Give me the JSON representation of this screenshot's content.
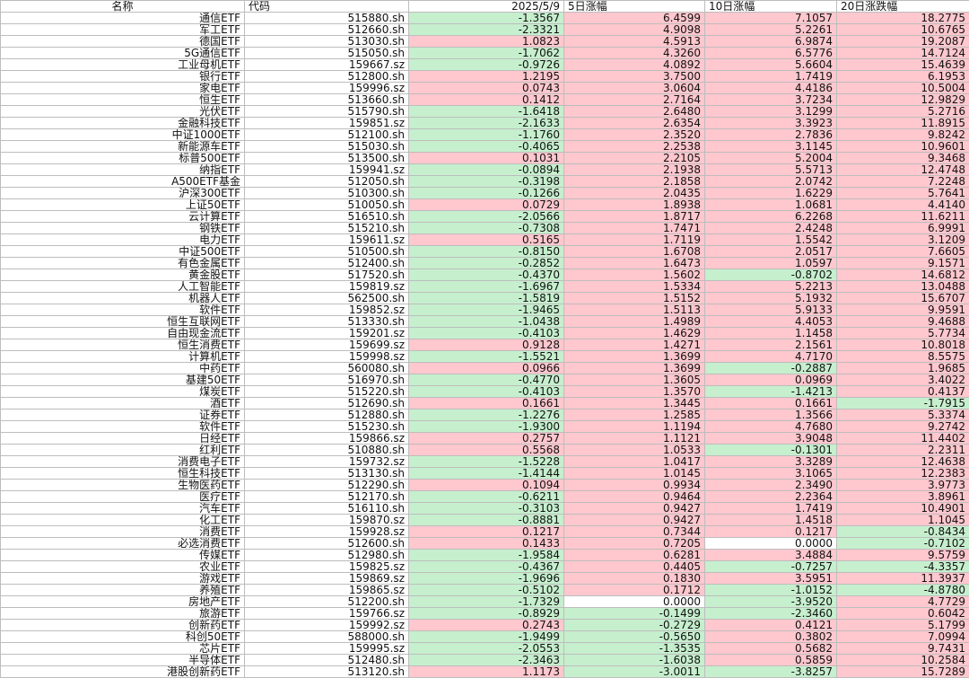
{
  "table": {
    "columns": [
      "名称",
      "代码",
      "2025/5/9",
      "5日涨幅",
      "10日涨幅",
      "20日涨跌幅"
    ],
    "rows": [
      [
        "通信ETF",
        "515880.sh",
        "-1.3567",
        "6.4599",
        "7.1057",
        "18.2775"
      ],
      [
        "军工ETF",
        "512660.sh",
        "-2.3321",
        "4.9098",
        "5.2261",
        "10.6765"
      ],
      [
        "德国ETF",
        "513030.sh",
        "1.0823",
        "4.5913",
        "6.9874",
        "19.2087"
      ],
      [
        "5G通信ETF",
        "515050.sh",
        "-1.7062",
        "4.3260",
        "6.5776",
        "14.7124"
      ],
      [
        "工业母机ETF",
        "159667.sz",
        "-0.9726",
        "4.0892",
        "5.6604",
        "15.4639"
      ],
      [
        "银行ETF",
        "512800.sh",
        "1.2195",
        "3.7500",
        "1.7419",
        "6.1953"
      ],
      [
        "家电ETF",
        "159996.sz",
        "0.0743",
        "3.0604",
        "4.4186",
        "10.5004"
      ],
      [
        "恒生ETF",
        "513660.sh",
        "0.1412",
        "2.7164",
        "3.7234",
        "12.9829"
      ],
      [
        "光伏ETF",
        "515790.sh",
        "-1.6418",
        "2.6480",
        "3.1299",
        "5.2716"
      ],
      [
        "金融科技ETF",
        "159851.sz",
        "-2.1633",
        "2.6354",
        "3.3923",
        "11.8915"
      ],
      [
        "中证1000ETF",
        "512100.sh",
        "-1.1760",
        "2.3520",
        "2.7836",
        "9.8242"
      ],
      [
        "新能源车ETF",
        "515030.sh",
        "-0.4065",
        "2.2538",
        "3.1145",
        "10.9601"
      ],
      [
        "标普500ETF",
        "513500.sh",
        "0.1031",
        "2.2105",
        "5.2004",
        "9.3468"
      ],
      [
        "纳指ETF",
        "159941.sz",
        "-0.0894",
        "2.1938",
        "5.5713",
        "12.4748"
      ],
      [
        "A500ETF基金",
        "512050.sh",
        "-0.3198",
        "2.1858",
        "2.0742",
        "7.2248"
      ],
      [
        "沪深300ETF",
        "510300.sh",
        "-0.1266",
        "2.0435",
        "1.6229",
        "5.7641"
      ],
      [
        "上证50ETF",
        "510050.sh",
        "0.0729",
        "1.8938",
        "1.0681",
        "4.4140"
      ],
      [
        "云计算ETF",
        "516510.sh",
        "-2.0566",
        "1.8717",
        "6.2268",
        "11.6211"
      ],
      [
        "钢铁ETF",
        "515210.sh",
        "-0.7308",
        "1.7471",
        "2.4248",
        "6.9991"
      ],
      [
        "电力ETF",
        "159611.sz",
        "0.5165",
        "1.7119",
        "1.5542",
        "3.1209"
      ],
      [
        "中证500ETF",
        "510500.sh",
        "-0.8150",
        "1.6708",
        "2.0517",
        "7.6605"
      ],
      [
        "有色金属ETF",
        "512400.sh",
        "-0.2852",
        "1.6473",
        "1.0597",
        "9.1571"
      ],
      [
        "黄金股ETF",
        "517520.sh",
        "-0.4370",
        "1.5602",
        "-0.8702",
        "14.6812"
      ],
      [
        "人工智能ETF",
        "159819.sz",
        "-1.6967",
        "1.5334",
        "5.2213",
        "13.0488"
      ],
      [
        "机器人ETF",
        "562500.sh",
        "-1.5819",
        "1.5152",
        "5.1932",
        "15.6707"
      ],
      [
        "软件ETF",
        "159852.sz",
        "-1.9465",
        "1.5113",
        "5.9133",
        "9.9591"
      ],
      [
        "恒生互联网ETF",
        "513330.sh",
        "-1.0438",
        "1.4989",
        "4.4053",
        "9.4688"
      ],
      [
        "自由现金流ETF",
        "159201.sz",
        "-0.4103",
        "1.4629",
        "1.1458",
        "5.7734"
      ],
      [
        "恒生消费ETF",
        "159699.sz",
        "0.9128",
        "1.4271",
        "2.1561",
        "10.8018"
      ],
      [
        "计算机ETF",
        "159998.sz",
        "-1.5521",
        "1.3699",
        "4.7170",
        "8.5575"
      ],
      [
        "中药ETF",
        "560080.sh",
        "0.0966",
        "1.3699",
        "-0.2887",
        "1.9685"
      ],
      [
        "基建50ETF",
        "516970.sh",
        "-0.4770",
        "1.3605",
        "0.0969",
        "3.4022"
      ],
      [
        "煤炭ETF",
        "515220.sh",
        "-0.4103",
        "1.3570",
        "-1.4213",
        "0.4137"
      ],
      [
        "酒ETF",
        "512690.sh",
        "0.1661",
        "1.3445",
        "0.1661",
        "-1.7915"
      ],
      [
        "证券ETF",
        "512880.sh",
        "-1.2276",
        "1.2585",
        "1.3566",
        "5.3374"
      ],
      [
        "软件ETF",
        "515230.sh",
        "-1.9300",
        "1.1194",
        "4.7680",
        "9.2742"
      ],
      [
        "日经ETF",
        "159866.sz",
        "0.2757",
        "1.1121",
        "3.9048",
        "11.4402"
      ],
      [
        "红利ETF",
        "510880.sh",
        "0.5568",
        "1.0533",
        "-0.1301",
        "2.2311"
      ],
      [
        "消费电子ETF",
        "159732.sz",
        "-1.5228",
        "1.0417",
        "3.3289",
        "12.4638"
      ],
      [
        "恒生科技ETF",
        "513130.sh",
        "-1.4144",
        "1.0145",
        "3.1065",
        "12.2383"
      ],
      [
        "生物医药ETF",
        "512290.sh",
        "0.1094",
        "0.9934",
        "2.3490",
        "3.9773"
      ],
      [
        "医疗ETF",
        "512170.sh",
        "-0.6211",
        "0.9464",
        "2.2364",
        "3.8961"
      ],
      [
        "汽车ETF",
        "516110.sh",
        "-0.3103",
        "0.9427",
        "1.7419",
        "10.4901"
      ],
      [
        "化工ETF",
        "159870.sz",
        "-0.8881",
        "0.9427",
        "1.4518",
        "1.1045"
      ],
      [
        "消费ETF",
        "159928.sz",
        "0.1217",
        "0.7344",
        "0.1217",
        "-0.8434"
      ],
      [
        "必选消费ETF",
        "512600.sh",
        "0.1433",
        "0.7205",
        "0.0000",
        "-0.7102"
      ],
      [
        "传媒ETF",
        "512980.sh",
        "-1.9584",
        "0.6281",
        "3.4884",
        "9.5759"
      ],
      [
        "农业ETF",
        "159825.sz",
        "-0.4367",
        "0.4405",
        "-0.7257",
        "-4.3357"
      ],
      [
        "游戏ETF",
        "159869.sz",
        "-1.9696",
        "0.1830",
        "3.5951",
        "11.3937"
      ],
      [
        "养殖ETF",
        "159865.sz",
        "-0.5102",
        "0.1712",
        "-1.0152",
        "-4.8780"
      ],
      [
        "房地产ETF",
        "512200.sh",
        "-1.7329",
        "0.0000",
        "-3.9520",
        "4.7729"
      ],
      [
        "旅游ETF",
        "159766.sz",
        "-0.8929",
        "-0.1499",
        "-2.3460",
        "0.6042"
      ],
      [
        "创新药ETF",
        "159992.sz",
        "0.2743",
        "-0.2729",
        "0.4121",
        "5.1799"
      ],
      [
        "科创50ETF",
        "588000.sh",
        "-1.9499",
        "-0.5650",
        "0.3802",
        "7.0994"
      ],
      [
        "芯片ETF",
        "159995.sz",
        "-2.0553",
        "-1.3535",
        "0.5682",
        "9.7431"
      ],
      [
        "半导体ETF",
        "512480.sh",
        "-2.3463",
        "-1.6038",
        "0.5859",
        "10.2584"
      ],
      [
        "港股创新药ETF",
        "513120.sh",
        "1.1173",
        "-3.0011",
        "-3.8257",
        "15.7289"
      ]
    ]
  }
}
